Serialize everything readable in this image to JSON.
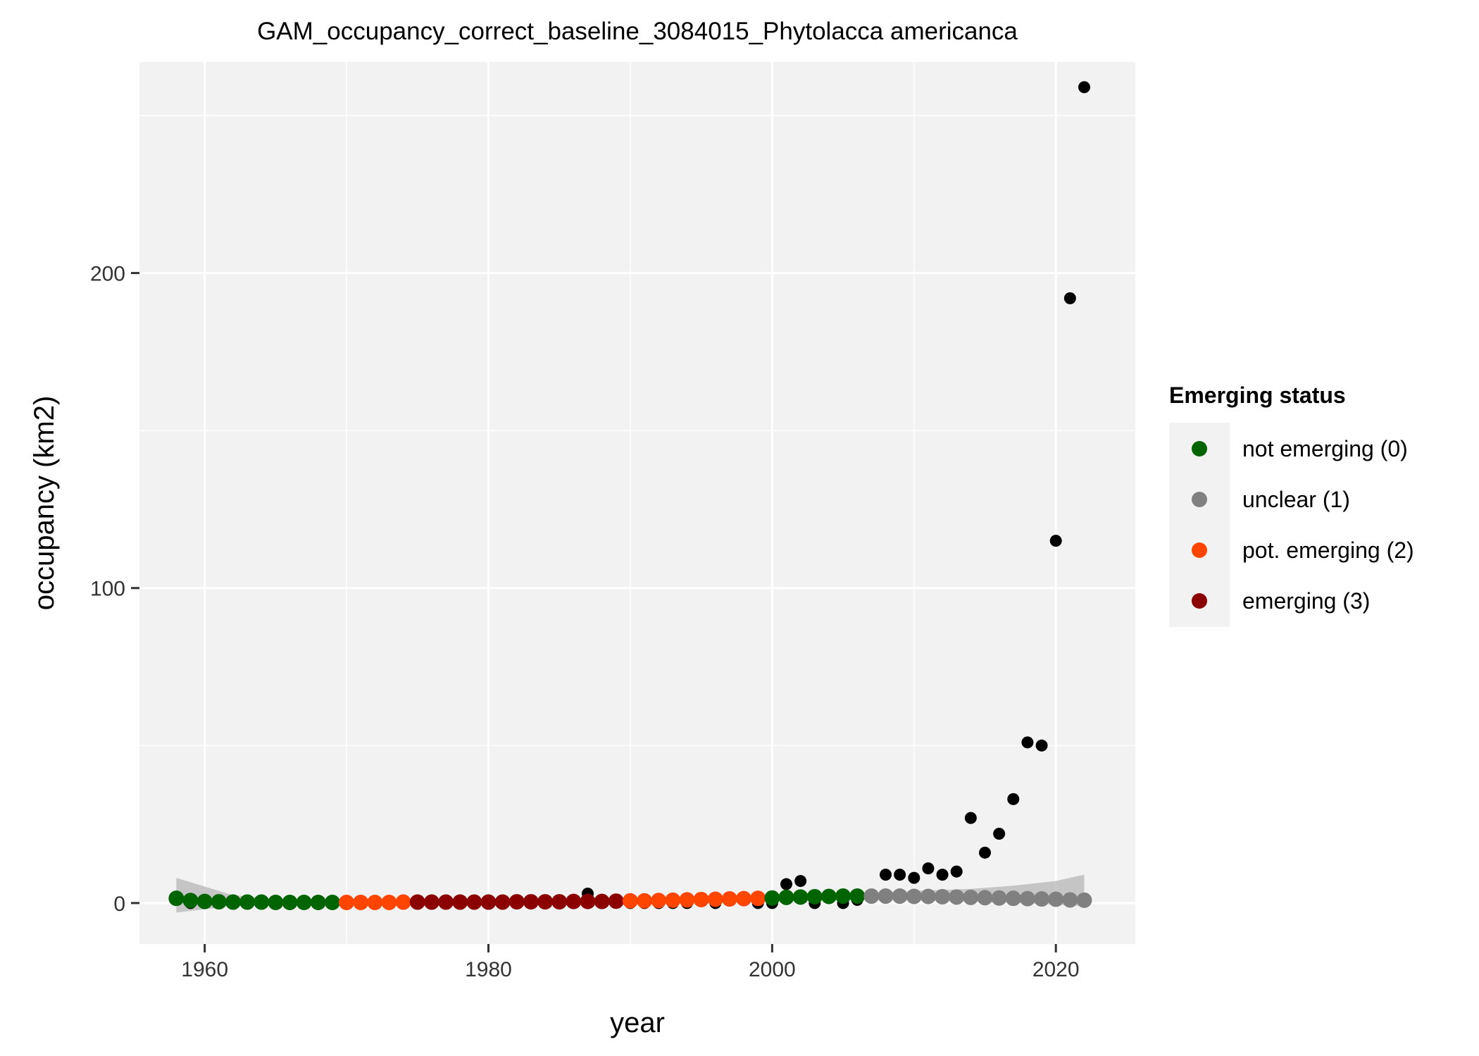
{
  "chart_data": {
    "type": "scatter",
    "title": "GAM_occupancy_correct_baseline_3084015_Phytolacca americanca",
    "xlabel": "year",
    "ylabel": "occupancy (km2)",
    "xlim": [
      1955.4,
      2025.6
    ],
    "ylim": [
      -13,
      267
    ],
    "x_ticks": [
      1960,
      1980,
      2000,
      2020
    ],
    "y_ticks": [
      0,
      100,
      200
    ],
    "x_tick_labels": [
      "1960",
      "1980",
      "2000",
      "2020"
    ],
    "y_tick_labels": [
      "0",
      "100",
      "200"
    ],
    "grid": true,
    "legend": {
      "title": "Emerging status",
      "placement": "right",
      "entries": [
        {
          "label": "not emerging (0)",
          "color": "#006400"
        },
        {
          "label": "unclear (1)",
          "color": "#808080"
        },
        {
          "label": "pot. emerging (2)",
          "color": "#FF4500"
        },
        {
          "label": "emerging (3)",
          "color": "#8B0000"
        }
      ]
    },
    "observed_color": "#000000",
    "band_color": "#bdbdbd",
    "observed": {
      "x": [
        1958,
        1959,
        1960,
        1961,
        1962,
        1963,
        1964,
        1965,
        1966,
        1967,
        1968,
        1969,
        1970,
        1971,
        1972,
        1973,
        1974,
        1975,
        1976,
        1977,
        1978,
        1979,
        1980,
        1981,
        1982,
        1983,
        1984,
        1985,
        1986,
        1987,
        1988,
        1989,
        1990,
        1991,
        1992,
        1993,
        1994,
        1995,
        1996,
        1997,
        1998,
        1999,
        2000,
        2001,
        2002,
        2003,
        2004,
        2005,
        2006,
        2007,
        2008,
        2009,
        2010,
        2011,
        2012,
        2013,
        2014,
        2015,
        2016,
        2017,
        2018,
        2019,
        2020,
        2021,
        2022
      ],
      "y": [
        1,
        0,
        0,
        0,
        0,
        0,
        0,
        0,
        0,
        0,
        0,
        0,
        0,
        0,
        0,
        0,
        0,
        0,
        0,
        0,
        0,
        0,
        0,
        0,
        0,
        0,
        0,
        0,
        0,
        3,
        1,
        1,
        0,
        0,
        0,
        0,
        0,
        1,
        0,
        1,
        1,
        0,
        0,
        6,
        7,
        0,
        2,
        0,
        1,
        2,
        9,
        9,
        8,
        11,
        9,
        10,
        27,
        16,
        22,
        33,
        51,
        50,
        115,
        192,
        259
      ]
    },
    "status": {
      "x": [
        1958,
        1959,
        1960,
        1961,
        1962,
        1963,
        1964,
        1965,
        1966,
        1967,
        1968,
        1969,
        1970,
        1971,
        1972,
        1973,
        1974,
        1975,
        1976,
        1977,
        1978,
        1979,
        1980,
        1981,
        1982,
        1983,
        1984,
        1985,
        1986,
        1987,
        1988,
        1989,
        1990,
        1991,
        1992,
        1993,
        1994,
        1995,
        1996,
        1997,
        1998,
        1999,
        2000,
        2001,
        2002,
        2003,
        2004,
        2005,
        2006,
        2007,
        2008,
        2009,
        2010,
        2011,
        2012,
        2013,
        2014,
        2015,
        2016,
        2017,
        2018,
        2019,
        2020,
        2021,
        2022
      ],
      "y": [
        1.5,
        0.8,
        0.5,
        0.4,
        0.3,
        0.3,
        0.3,
        0.2,
        0.2,
        0.2,
        0.2,
        0.2,
        0.2,
        0.2,
        0.2,
        0.2,
        0.3,
        0.3,
        0.3,
        0.3,
        0.3,
        0.3,
        0.3,
        0.3,
        0.4,
        0.4,
        0.4,
        0.4,
        0.5,
        0.5,
        0.5,
        0.6,
        0.7,
        0.7,
        0.8,
        0.9,
        1.0,
        1.1,
        1.2,
        1.3,
        1.4,
        1.5,
        1.6,
        1.8,
        1.9,
        2.0,
        2.1,
        2.2,
        2.2,
        2.2,
        2.2,
        2.2,
        2.1,
        2.1,
        2.0,
        1.9,
        1.8,
        1.7,
        1.6,
        1.5,
        1.4,
        1.3,
        1.2,
        1.0,
        0.9
      ],
      "status": [
        0,
        0,
        0,
        0,
        0,
        0,
        0,
        0,
        0,
        0,
        0,
        0,
        2,
        2,
        2,
        2,
        2,
        3,
        3,
        3,
        3,
        3,
        3,
        3,
        3,
        3,
        3,
        3,
        3,
        3,
        3,
        3,
        2,
        2,
        2,
        2,
        2,
        2,
        2,
        2,
        2,
        2,
        0,
        0,
        0,
        0,
        0,
        0,
        0,
        1,
        1,
        1,
        1,
        1,
        1,
        1,
        1,
        1,
        1,
        1,
        1,
        1,
        1,
        1,
        1
      ]
    },
    "band": {
      "x": [
        1958,
        1962,
        1966,
        1970,
        1975,
        1980,
        1985,
        1990,
        1995,
        2000,
        2005,
        2008,
        2011,
        2014,
        2017,
        2020,
        2022
      ],
      "upper": [
        8,
        2.5,
        1,
        0.8,
        0.8,
        0.8,
        1,
        1.2,
        1.5,
        2,
        3,
        3.5,
        4,
        4.5,
        5.5,
        7,
        9
      ],
      "lower": [
        -3,
        -1,
        -0.5,
        -0.2,
        -0.2,
        -0.2,
        0,
        0.2,
        0.5,
        1,
        1.5,
        1.2,
        0.8,
        0.4,
        0,
        -0.5,
        -1
      ]
    }
  }
}
